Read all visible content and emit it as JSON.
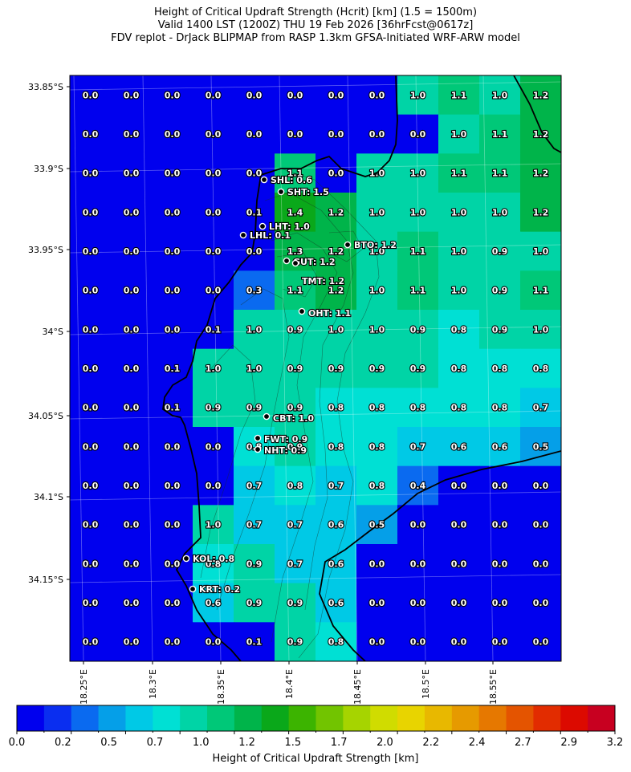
{
  "title_lines": [
    "Height of Critical Updraft Strength (Hcrit) [km] (1.5 = 1500m)",
    "Valid 1400 LST (1200Z) THU 19 Feb 2026 [36hrFcst@0617z]",
    "FDV replot - DrJack BLIPMAP from RASP 1.3km GFSA-Initiated WRF-ARW model"
  ],
  "colorbar": {
    "label": "Height of Critical Updraft Strength [km]",
    "ticks": [
      "0.0",
      "0.2",
      "0.5",
      "0.7",
      "1.0",
      "1.2",
      "1.5",
      "1.7",
      "2.0",
      "2.2",
      "2.4",
      "2.7",
      "2.9",
      "3.2"
    ],
    "colors": [
      "#0000ee",
      "#0a2ef0",
      "#0a6af0",
      "#059fe8",
      "#00c9e6",
      "#00e0d4",
      "#00d4a6",
      "#00c878",
      "#00b44a",
      "#0aa81a",
      "#3cb400",
      "#72c400",
      "#a6d400",
      "#d0dc00",
      "#e8d400",
      "#e8b800",
      "#e69a00",
      "#e67800",
      "#e45400",
      "#e22c00",
      "#dc0a00",
      "#c80020"
    ],
    "min": 0.0,
    "max": 3.2
  },
  "chart_data": {
    "type": "heatmap",
    "title": "Height of Critical Updraft Strength (Hcrit) [km] (1.5 = 1500m)",
    "units": "km",
    "x_ticks": [
      "18.25°E",
      "18.3°E",
      "18.35°E",
      "18.4°E",
      "18.45°E",
      "18.5°E",
      "18.55°E"
    ],
    "y_ticks": [
      "33.85°S",
      "33.9°S",
      "33.95°S",
      "34°S",
      "34.05°S",
      "34.1°S",
      "34.15°S"
    ],
    "grid_values": [
      [
        "0.0",
        "0.0",
        "0.0",
        "0.0",
        "0.0",
        "0.0",
        "0.0",
        "0.0",
        "1.0",
        "1.1",
        "1.0",
        "1.2"
      ],
      [
        "0.0",
        "0.0",
        "0.0",
        "0.0",
        "0.0",
        "0.0",
        "0.0",
        "0.0",
        "0.0",
        "1.0",
        "1.1",
        "1.2"
      ],
      [
        "0.0",
        "0.0",
        "0.0",
        "0.0",
        "0.0",
        "1.1",
        "0.0",
        "1.0",
        "1.0",
        "1.1",
        "1.1",
        "1.2"
      ],
      [
        "0.0",
        "0.0",
        "0.0",
        "0.0",
        "0.1",
        "1.4",
        "1.2",
        "1.0",
        "1.0",
        "1.0",
        "1.0",
        "1.2"
      ],
      [
        "0.0",
        "0.0",
        "0.0",
        "0.0",
        "0.0",
        "1.3",
        "1.2",
        "1.0",
        "1.1",
        "1.0",
        "0.9",
        "1.0"
      ],
      [
        "0.0",
        "0.0",
        "0.0",
        "0.0",
        "0.3",
        "1.1",
        "1.2",
        "1.0",
        "1.1",
        "1.0",
        "0.9",
        "1.1"
      ],
      [
        "0.0",
        "0.0",
        "0.0",
        "0.1",
        "1.0",
        "0.9",
        "1.0",
        "1.0",
        "0.9",
        "0.8",
        "0.9",
        "1.0"
      ],
      [
        "0.0",
        "0.0",
        "0.1",
        "1.0",
        "1.0",
        "0.9",
        "0.9",
        "0.9",
        "0.9",
        "0.8",
        "0.8",
        "0.8"
      ],
      [
        "0.0",
        "0.0",
        "0.1",
        "0.9",
        "0.9",
        "0.9",
        "0.8",
        "0.8",
        "0.8",
        "0.8",
        "0.8",
        "0.7"
      ],
      [
        "0.0",
        "0.0",
        "0.0",
        "0.0",
        "0.8",
        "0.9",
        "0.8",
        "0.8",
        "0.7",
        "0.6",
        "0.6",
        "0.5"
      ],
      [
        "0.0",
        "0.0",
        "0.0",
        "0.0",
        "0.7",
        "0.8",
        "0.7",
        "0.8",
        "0.4",
        "0.0",
        "0.0",
        "0.0"
      ],
      [
        "0.0",
        "0.0",
        "0.0",
        "1.0",
        "0.7",
        "0.7",
        "0.6",
        "0.5",
        "0.0",
        "0.0",
        "0.0",
        "0.0"
      ],
      [
        "0.0",
        "0.0",
        "0.0",
        "0.8",
        "0.9",
        "0.7",
        "0.6",
        "0.0",
        "0.0",
        "0.0",
        "0.0",
        "0.0"
      ],
      [
        "0.0",
        "0.0",
        "0.0",
        "0.6",
        "0.9",
        "0.9",
        "0.6",
        "0.0",
        "0.0",
        "0.0",
        "0.0",
        "0.0"
      ],
      [
        "0.0",
        "0.0",
        "0.0",
        "0.0",
        "0.1",
        "0.9",
        "0.8",
        "0.0",
        "0.0",
        "0.0",
        "0.0",
        "0.0"
      ]
    ],
    "stations": [
      {
        "name": "SHL",
        "value": "0.6"
      },
      {
        "name": "SHT",
        "value": "1.5"
      },
      {
        "name": "LHT",
        "value": "1.0"
      },
      {
        "name": "LHL",
        "value": "0.1"
      },
      {
        "name": "BTO",
        "value": "1.2"
      },
      {
        "name": "GUT",
        "value": "1.2"
      },
      {
        "name": "TMT",
        "value": "1.2"
      },
      {
        "name": "OHT",
        "value": "1.1"
      },
      {
        "name": "CBT",
        "value": "1.0"
      },
      {
        "name": "FWT",
        "value": "0.9"
      },
      {
        "name": "NHT",
        "value": "0.9"
      },
      {
        "name": "KOL",
        "value": "0.8"
      },
      {
        "name": "KRT",
        "value": "0.2"
      }
    ]
  }
}
